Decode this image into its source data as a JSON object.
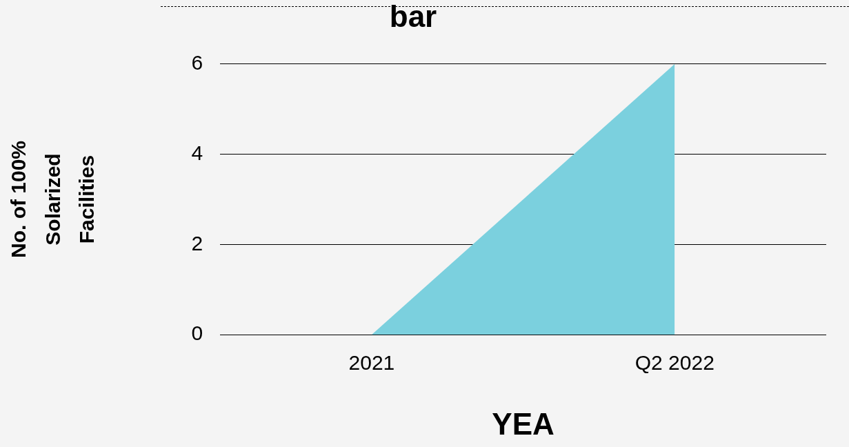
{
  "chart_data": {
    "type": "area",
    "title": "bar",
    "xlabel": "YEA",
    "ylabel": "No. of 100%\nSolarized\nFacilities",
    "categories": [
      "2021",
      "Q2 2022"
    ],
    "series": [
      {
        "color": "#7bd0de",
        "values": [
          0,
          6
        ]
      }
    ],
    "ylim": [
      0,
      6
    ],
    "yticks": [
      0,
      2,
      4,
      6
    ],
    "grid": "y",
    "legend": false,
    "marker": "none"
  }
}
